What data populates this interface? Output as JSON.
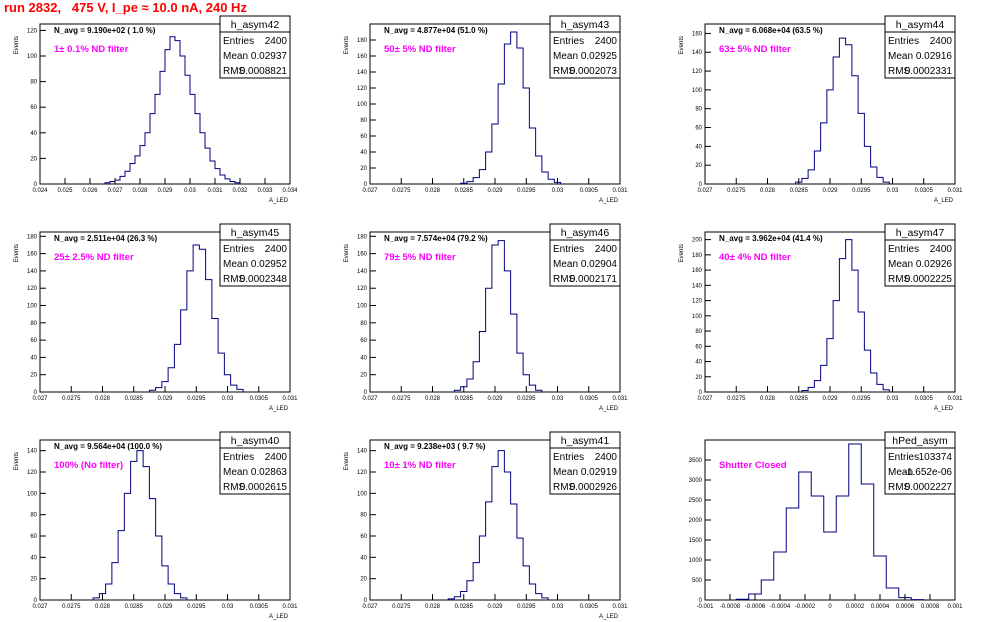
{
  "canvas_title": "run 2832,   475 V, I_pe ≈ 10.0 nA, 240 Hz",
  "colors": {
    "histogram": "#000080",
    "filter_label": "#ff00ff",
    "title": "#ff0000",
    "axis": "#000000"
  },
  "chart_data": [
    {
      "type": "histogram",
      "name": "h_asym42",
      "yaxis_label": "Events",
      "xaxis_label": "A_LED",
      "xlim": [
        0.024,
        0.034
      ],
      "ylim": [
        0,
        125
      ],
      "xticks": [
        0.024,
        0.025,
        0.026,
        0.027,
        0.028,
        0.029,
        0.03,
        0.031,
        0.032,
        0.033,
        0.034
      ],
      "xtick_labels": [
        "0.024",
        "0.025",
        "0.026",
        "0.027",
        "0.028",
        "0.029",
        "0.03",
        "0.031",
        "0.032",
        "0.033",
        "0.034"
      ],
      "yticks": [
        0,
        20,
        40,
        60,
        80,
        100,
        120
      ],
      "navg_text": "N_avg = 9.190e+02 ( 1.0 %)",
      "filter_text": "1± 0.1% ND filter",
      "stats": {
        "Entries": "2400",
        "Mean": "0.02937",
        "RMS": "0.0008821"
      },
      "bins": [
        [
          0.0267,
          1
        ],
        [
          0.0269,
          2
        ],
        [
          0.0271,
          3
        ],
        [
          0.0273,
          6
        ],
        [
          0.0275,
          10
        ],
        [
          0.0277,
          16
        ],
        [
          0.0279,
          22
        ],
        [
          0.0281,
          30
        ],
        [
          0.0283,
          40
        ],
        [
          0.0285,
          55
        ],
        [
          0.0287,
          70
        ],
        [
          0.0289,
          88
        ],
        [
          0.0291,
          105
        ],
        [
          0.0293,
          115
        ],
        [
          0.0295,
          112
        ],
        [
          0.0297,
          100
        ],
        [
          0.0299,
          85
        ],
        [
          0.0301,
          70
        ],
        [
          0.0303,
          55
        ],
        [
          0.0305,
          40
        ],
        [
          0.0307,
          28
        ],
        [
          0.0309,
          18
        ],
        [
          0.0311,
          12
        ],
        [
          0.0313,
          7
        ],
        [
          0.0315,
          4
        ],
        [
          0.0317,
          2
        ],
        [
          0.0319,
          1
        ]
      ]
    },
    {
      "type": "histogram",
      "name": "h_asym43",
      "yaxis_label": "Events",
      "xaxis_label": "A_LED",
      "xlim": [
        0.027,
        0.031
      ],
      "ylim": [
        0,
        200
      ],
      "xticks": [
        0.027,
        0.0275,
        0.028,
        0.0285,
        0.029,
        0.0295,
        0.03,
        0.0305,
        0.031
      ],
      "xtick_labels": [
        "0.027",
        "0.0275",
        "0.028",
        "0.0285",
        "0.029",
        "0.0295",
        "0.03",
        "0.0305",
        "0.031"
      ],
      "yticks": [
        0,
        20,
        40,
        60,
        80,
        100,
        120,
        140,
        160,
        180
      ],
      "navg_text": "N_avg = 4.877e+04 (51.0 %)",
      "filter_text": "50± 5% ND filter",
      "stats": {
        "Entries": "2400",
        "Mean": "0.02925",
        "RMS": "0.0002073"
      },
      "bins": [
        [
          0.0285,
          1
        ],
        [
          0.0286,
          3
        ],
        [
          0.0287,
          8
        ],
        [
          0.0288,
          18
        ],
        [
          0.0289,
          40
        ],
        [
          0.029,
          75
        ],
        [
          0.0291,
          125
        ],
        [
          0.0292,
          175
        ],
        [
          0.0293,
          190
        ],
        [
          0.0294,
          170
        ],
        [
          0.0295,
          120
        ],
        [
          0.0296,
          70
        ],
        [
          0.0297,
          35
        ],
        [
          0.0298,
          15
        ],
        [
          0.0299,
          6
        ],
        [
          0.03,
          2
        ]
      ]
    },
    {
      "type": "histogram",
      "name": "h_asym44",
      "yaxis_label": "Events",
      "xaxis_label": "A_LED",
      "xlim": [
        0.027,
        0.031
      ],
      "ylim": [
        0,
        170
      ],
      "xticks": [
        0.027,
        0.0275,
        0.028,
        0.0285,
        0.029,
        0.0295,
        0.03,
        0.0305,
        0.031
      ],
      "xtick_labels": [
        "0.027",
        "0.0275",
        "0.028",
        "0.0285",
        "0.029",
        "0.0295",
        "0.03",
        "0.0305",
        "0.031"
      ],
      "yticks": [
        0,
        20,
        40,
        60,
        80,
        100,
        120,
        140,
        160
      ],
      "navg_text": "N_avg = 6.068e+04 (63.5 %)",
      "filter_text": "63± 5% ND filter",
      "stats": {
        "Entries": "2400",
        "Mean": "0.02916",
        "RMS": "0.0002331"
      },
      "bins": [
        [
          0.0285,
          2
        ],
        [
          0.0286,
          6
        ],
        [
          0.0287,
          15
        ],
        [
          0.0288,
          35
        ],
        [
          0.0289,
          65
        ],
        [
          0.029,
          100
        ],
        [
          0.0291,
          135
        ],
        [
          0.0292,
          155
        ],
        [
          0.0293,
          148
        ],
        [
          0.0294,
          115
        ],
        [
          0.0295,
          75
        ],
        [
          0.0296,
          40
        ],
        [
          0.0297,
          18
        ],
        [
          0.0298,
          7
        ],
        [
          0.0299,
          2
        ]
      ]
    },
    {
      "type": "histogram",
      "name": "h_asym45",
      "yaxis_label": "Events",
      "xaxis_label": "A_LED",
      "xlim": [
        0.027,
        0.031
      ],
      "ylim": [
        0,
        185
      ],
      "xticks": [
        0.027,
        0.0275,
        0.028,
        0.0285,
        0.029,
        0.0295,
        0.03,
        0.0305,
        0.031
      ],
      "xtick_labels": [
        "0.027",
        "0.0275",
        "0.028",
        "0.0285",
        "0.029",
        "0.0295",
        "0.03",
        "0.0305",
        "0.031"
      ],
      "yticks": [
        0,
        20,
        40,
        60,
        80,
        100,
        120,
        140,
        160,
        180
      ],
      "navg_text": "N_avg = 2.511e+04 (26.3 %)",
      "filter_text": "25± 2.5% ND filter",
      "stats": {
        "Entries": "2400",
        "Mean": "0.02952",
        "RMS": "0.0002348"
      },
      "bins": [
        [
          0.0288,
          2
        ],
        [
          0.0289,
          5
        ],
        [
          0.029,
          12
        ],
        [
          0.0291,
          28
        ],
        [
          0.0292,
          55
        ],
        [
          0.0293,
          95
        ],
        [
          0.0294,
          140
        ],
        [
          0.0295,
          170
        ],
        [
          0.0296,
          165
        ],
        [
          0.0297,
          130
        ],
        [
          0.0298,
          85
        ],
        [
          0.0299,
          45
        ],
        [
          0.03,
          20
        ],
        [
          0.0301,
          8
        ],
        [
          0.0302,
          3
        ]
      ]
    },
    {
      "type": "histogram",
      "name": "h_asym46",
      "yaxis_label": "Events",
      "xaxis_label": "A_LED",
      "xlim": [
        0.027,
        0.031
      ],
      "ylim": [
        0,
        185
      ],
      "xticks": [
        0.027,
        0.0275,
        0.028,
        0.0285,
        0.029,
        0.0295,
        0.03,
        0.0305,
        0.031
      ],
      "xtick_labels": [
        "0.027",
        "0.0275",
        "0.028",
        "0.0285",
        "0.029",
        "0.0295",
        "0.03",
        "0.0305",
        "0.031"
      ],
      "yticks": [
        0,
        20,
        40,
        60,
        80,
        100,
        120,
        140,
        160,
        180
      ],
      "navg_text": "N_avg = 7.574e+04 (79.2 %)",
      "filter_text": "79± 5% ND filter",
      "stats": {
        "Entries": "2400",
        "Mean": "0.02904",
        "RMS": "0.0002171"
      },
      "bins": [
        [
          0.0284,
          2
        ],
        [
          0.0285,
          6
        ],
        [
          0.0286,
          15
        ],
        [
          0.0287,
          35
        ],
        [
          0.0288,
          70
        ],
        [
          0.0289,
          120
        ],
        [
          0.029,
          170
        ],
        [
          0.0291,
          175
        ],
        [
          0.0292,
          140
        ],
        [
          0.0293,
          90
        ],
        [
          0.0294,
          45
        ],
        [
          0.0295,
          20
        ],
        [
          0.0296,
          8
        ],
        [
          0.0297,
          2
        ]
      ]
    },
    {
      "type": "histogram",
      "name": "h_asym47",
      "yaxis_label": "Events",
      "xaxis_label": "A_LED",
      "xlim": [
        0.027,
        0.031
      ],
      "ylim": [
        0,
        210
      ],
      "xticks": [
        0.027,
        0.0275,
        0.028,
        0.0285,
        0.029,
        0.0295,
        0.03,
        0.0305,
        0.031
      ],
      "xtick_labels": [
        "0.027",
        "0.0275",
        "0.028",
        "0.0285",
        "0.029",
        "0.0295",
        "0.03",
        "0.0305",
        "0.031"
      ],
      "yticks": [
        0,
        20,
        40,
        60,
        80,
        100,
        120,
        140,
        160,
        180,
        200
      ],
      "navg_text": "N_avg = 3.962e+04 (41.4 %)",
      "filter_text": "40± 4% ND filter",
      "stats": {
        "Entries": "2400",
        "Mean": "0.02926",
        "RMS": "0.0002225"
      },
      "bins": [
        [
          0.0286,
          2
        ],
        [
          0.0287,
          6
        ],
        [
          0.0288,
          15
        ],
        [
          0.0289,
          35
        ],
        [
          0.029,
          70
        ],
        [
          0.0291,
          120
        ],
        [
          0.0292,
          175
        ],
        [
          0.0293,
          200
        ],
        [
          0.0294,
          160
        ],
        [
          0.0295,
          105
        ],
        [
          0.0296,
          55
        ],
        [
          0.0297,
          25
        ],
        [
          0.0298,
          10
        ],
        [
          0.0299,
          3
        ]
      ]
    },
    {
      "type": "histogram",
      "name": "h_asym40",
      "yaxis_label": "Events",
      "xaxis_label": "A_LED",
      "xlim": [
        0.027,
        0.031
      ],
      "ylim": [
        0,
        150
      ],
      "xticks": [
        0.027,
        0.0275,
        0.028,
        0.0285,
        0.029,
        0.0295,
        0.03,
        0.0305,
        0.031
      ],
      "xtick_labels": [
        "0.027",
        "0.0275",
        "0.028",
        "0.0285",
        "0.029",
        "0.0295",
        "0.03",
        "0.0305",
        "0.031"
      ],
      "yticks": [
        0,
        20,
        40,
        60,
        80,
        100,
        120,
        140
      ],
      "navg_text": "N_avg = 9.564e+04 (100.0 %)",
      "filter_text": "100% (No filter)",
      "stats": {
        "Entries": "2400",
        "Mean": "0.02863",
        "RMS": "0.0002615"
      },
      "bins": [
        [
          0.0279,
          2
        ],
        [
          0.028,
          6
        ],
        [
          0.0281,
          15
        ],
        [
          0.0282,
          35
        ],
        [
          0.0283,
          65
        ],
        [
          0.0284,
          100
        ],
        [
          0.0285,
          130
        ],
        [
          0.0286,
          140
        ],
        [
          0.0287,
          125
        ],
        [
          0.0288,
          95
        ],
        [
          0.0289,
          60
        ],
        [
          0.029,
          32
        ],
        [
          0.0291,
          15
        ],
        [
          0.0292,
          6
        ],
        [
          0.0293,
          2
        ]
      ]
    },
    {
      "type": "histogram",
      "name": "h_asym41",
      "yaxis_label": "Events",
      "xaxis_label": "A_LED",
      "xlim": [
        0.027,
        0.031
      ],
      "ylim": [
        0,
        150
      ],
      "xticks": [
        0.027,
        0.0275,
        0.028,
        0.0285,
        0.029,
        0.0295,
        0.03,
        0.0305,
        0.031
      ],
      "xtick_labels": [
        "0.027",
        "0.0275",
        "0.028",
        "0.0285",
        "0.029",
        "0.0295",
        "0.03",
        "0.0305",
        "0.031"
      ],
      "yticks": [
        0,
        20,
        40,
        60,
        80,
        100,
        120,
        140
      ],
      "navg_text": "N_avg = 9.238e+03 ( 9.7 %)",
      "filter_text": "10± 1% ND filter",
      "stats": {
        "Entries": "2400",
        "Mean": "0.02919",
        "RMS": "0.0002926"
      },
      "bins": [
        [
          0.0283,
          1
        ],
        [
          0.0284,
          3
        ],
        [
          0.0285,
          8
        ],
        [
          0.0286,
          18
        ],
        [
          0.0287,
          35
        ],
        [
          0.0288,
          60
        ],
        [
          0.0289,
          92
        ],
        [
          0.029,
          125
        ],
        [
          0.0291,
          140
        ],
        [
          0.0292,
          120
        ],
        [
          0.0293,
          90
        ],
        [
          0.0294,
          58
        ],
        [
          0.0295,
          32
        ],
        [
          0.0296,
          15
        ],
        [
          0.0297,
          6
        ],
        [
          0.0298,
          2
        ]
      ]
    },
    {
      "type": "histogram",
      "name": "hPed_asym",
      "yaxis_label": "",
      "xaxis_label": "",
      "xlim": [
        -0.001,
        0.001
      ],
      "ylim": [
        0,
        4000
      ],
      "xticks": [
        -0.001,
        -0.0008,
        -0.0006,
        -0.0004,
        -0.0002,
        0,
        0.0002,
        0.0004,
        0.0006,
        0.0008,
        0.001
      ],
      "xtick_labels": [
        "-0.001",
        "-0.0008",
        "-0.0006",
        "-0.0004",
        "-0.0002",
        "0",
        "0.0002",
        "0.0004",
        "0.0006",
        "0.0008",
        "0.001"
      ],
      "yticks": [
        0,
        500,
        1000,
        1500,
        2000,
        2500,
        3000,
        3500
      ],
      "navg_text": "",
      "filter_text": "Shutter Closed",
      "stats": {
        "Entries": "103374",
        "Mean": "-1.652e-06",
        "RMS": "0.0002227"
      },
      "bins": [
        [
          -0.0007,
          20
        ],
        [
          -0.0006,
          150
        ],
        [
          -0.0005,
          500
        ],
        [
          -0.0004,
          1200
        ],
        [
          -0.0003,
          2300
        ],
        [
          -0.0002,
          3200
        ],
        [
          -0.0001,
          2600
        ],
        [
          0.0,
          1700
        ],
        [
          0.0001,
          2600
        ],
        [
          0.0002,
          3900
        ],
        [
          0.0003,
          2900
        ],
        [
          0.0004,
          1100
        ],
        [
          0.0005,
          300
        ],
        [
          0.0006,
          60
        ],
        [
          0.0007,
          10
        ]
      ]
    }
  ]
}
